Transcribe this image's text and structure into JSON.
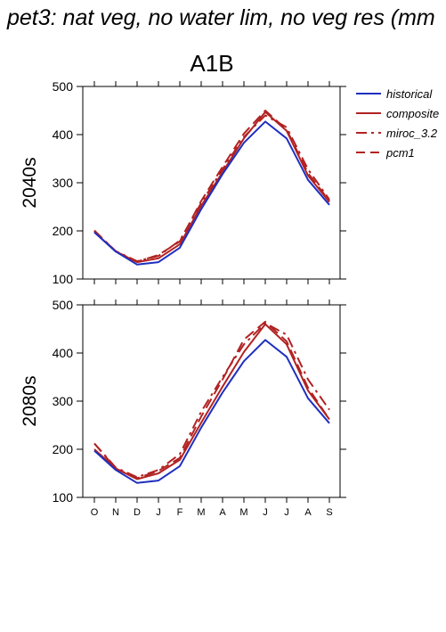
{
  "figure": {
    "title": "pet3: nat veg, no water lim, no veg res (mm",
    "scenario": "A1B"
  },
  "chart_data": [
    {
      "type": "line",
      "panel": "2040s",
      "ylabel": "2040s",
      "categories": [
        "O",
        "N",
        "D",
        "J",
        "F",
        "M",
        "A",
        "M",
        "J",
        "J",
        "A",
        "S"
      ],
      "ylim": [
        100,
        500
      ],
      "yticks": [
        100,
        200,
        300,
        400,
        500
      ],
      "series": [
        {
          "name": "historical",
          "color": "#1f2fbf",
          "dash": "solid",
          "values": [
            197,
            157,
            130,
            135,
            165,
            245,
            318,
            383,
            427,
            392,
            306,
            254
          ]
        },
        {
          "name": "composite",
          "color": "#b22222",
          "dash": "solid",
          "values": [
            198,
            157,
            135,
            143,
            172,
            252,
            322,
            392,
            447,
            408,
            315,
            260
          ]
        },
        {
          "name": "miroc_3.2",
          "color": "#b22222",
          "dash": "dashdot",
          "values": [
            200,
            158,
            137,
            148,
            180,
            258,
            328,
            395,
            440,
            415,
            328,
            265
          ]
        },
        {
          "name": "pcm1",
          "color": "#b22222",
          "dash": "dash",
          "values": [
            201,
            157,
            136,
            150,
            178,
            262,
            333,
            402,
            450,
            410,
            320,
            262
          ]
        }
      ]
    },
    {
      "type": "line",
      "panel": "2080s",
      "ylabel": "2080s",
      "categories": [
        "O",
        "N",
        "D",
        "J",
        "F",
        "M",
        "A",
        "M",
        "J",
        "J",
        "A",
        "S"
      ],
      "ylim": [
        100,
        500
      ],
      "yticks": [
        100,
        200,
        300,
        400,
        500
      ],
      "series": [
        {
          "name": "historical",
          "color": "#1f2fbf",
          "dash": "solid",
          "values": [
            197,
            157,
            130,
            135,
            165,
            245,
            318,
            383,
            427,
            392,
            306,
            254
          ]
        },
        {
          "name": "composite",
          "color": "#b22222",
          "dash": "solid",
          "values": [
            200,
            160,
            138,
            150,
            178,
            255,
            330,
            402,
            460,
            418,
            322,
            262
          ]
        },
        {
          "name": "miroc_3.2",
          "color": "#b22222",
          "dash": "dashdot",
          "values": [
            212,
            162,
            142,
            157,
            190,
            278,
            350,
            418,
            462,
            438,
            345,
            282
          ]
        },
        {
          "name": "pcm1",
          "color": "#b22222",
          "dash": "dash",
          "values": [
            212,
            160,
            140,
            155,
            182,
            268,
            345,
            428,
            465,
            424,
            328,
            262
          ]
        }
      ]
    }
  ]
}
